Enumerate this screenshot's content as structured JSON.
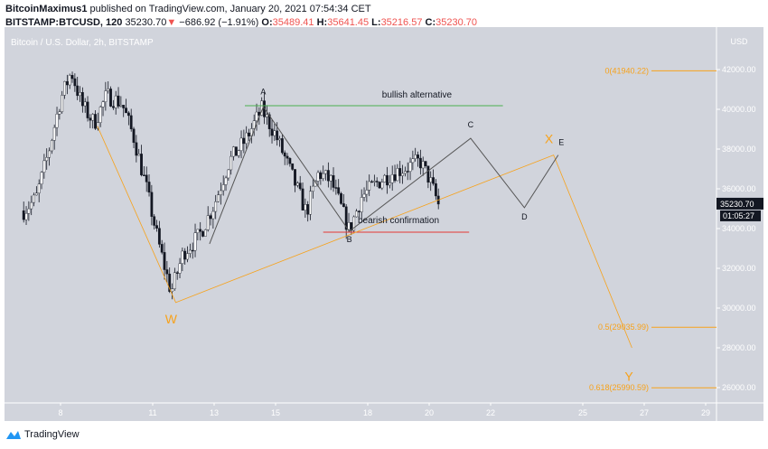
{
  "header": {
    "author": "BitcoinMaximus1",
    "published": "published on TradingView.com, January 20, 2021 07:54:34 CET",
    "symbol": "BITSTAMP:BTCUSD, 120",
    "last": "35230.70",
    "change": "−686.92 (−1.91%)",
    "o_label": "O:",
    "o": "35489.41",
    "h_label": "H:",
    "h": "35641.45",
    "l_label": "L:",
    "l": "35216.57",
    "c_label": "C:",
    "c": "35230.70"
  },
  "footer": {
    "brand": "TradingView"
  },
  "chart_data": {
    "type": "candlestick",
    "title": "Bitcoin / U.S. Dollar, 2h, BITSTAMP",
    "currency_label": "USD",
    "interval": "2h",
    "y_ticks": [
      "42000.00",
      "40000.00",
      "38000.00",
      "36000.00",
      "34000.00",
      "32000.00",
      "30000.00",
      "28000.00",
      "26000.00"
    ],
    "x_ticks": [
      "8",
      "11",
      "13",
      "15",
      "18",
      "20",
      "22",
      "25",
      "27",
      "29"
    ],
    "ylim": [
      24700,
      44300
    ],
    "last_price": "35230.70",
    "countdown": "01:05:27",
    "price_path_approx": [
      [
        6.8,
        34900
      ],
      [
        7.2,
        35500
      ],
      [
        7.6,
        37800
      ],
      [
        8.0,
        40500
      ],
      [
        8.35,
        41900
      ],
      [
        8.7,
        40200
      ],
      [
        9.1,
        39300
      ],
      [
        9.5,
        40700
      ],
      [
        10.0,
        40300
      ],
      [
        10.4,
        38500
      ],
      [
        10.8,
        36000
      ],
      [
        11.2,
        33200
      ],
      [
        11.6,
        30800
      ],
      [
        12.0,
        32800
      ],
      [
        12.5,
        33600
      ],
      [
        13.0,
        35200
      ],
      [
        13.5,
        37400
      ],
      [
        14.0,
        38400
      ],
      [
        14.55,
        40000
      ],
      [
        15.0,
        38700
      ],
      [
        15.5,
        36800
      ],
      [
        16.0,
        34800
      ],
      [
        16.4,
        36800
      ],
      [
        16.8,
        36400
      ],
      [
        17.1,
        35200
      ],
      [
        17.4,
        33900
      ],
      [
        17.8,
        35600
      ],
      [
        18.3,
        36300
      ],
      [
        18.8,
        36800
      ],
      [
        19.3,
        37100
      ],
      [
        19.7,
        37400
      ],
      [
        20.0,
        36500
      ],
      [
        20.3,
        35230
      ]
    ],
    "colors": {
      "background": "#d1d4dc",
      "up": "#ffffff",
      "down": "#131722",
      "fib": "#f7a21b",
      "bullish": "#4caf50",
      "bearish": "#e53935",
      "wave": "#555"
    },
    "fib_levels": [
      {
        "label": "0(41940.22)",
        "price": 41940.22
      },
      {
        "label": "0.5(29035.99)",
        "price": 29035.99
      },
      {
        "label": "0.618(25990.59)",
        "price": 25990.59
      }
    ],
    "lines": [
      {
        "name": "bullish alternative",
        "color": "#4caf50",
        "points": [
          [
            14.0,
            40180
          ],
          [
            22.4,
            40180
          ]
        ]
      },
      {
        "name": "bearish confirmation",
        "color": "#e53935",
        "points": [
          [
            16.55,
            33820
          ],
          [
            21.3,
            33820
          ]
        ]
      },
      {
        "name": "wxy",
        "color": "#f7a21b",
        "points": [
          [
            9.2,
            39150
          ],
          [
            11.75,
            30280
          ],
          [
            24.05,
            37700
          ],
          [
            26.6,
            28000
          ]
        ]
      },
      {
        "name": "abcde",
        "color": "#555",
        "points": [
          [
            12.85,
            33230
          ],
          [
            14.6,
            40130
          ],
          [
            17.4,
            33860
          ],
          [
            21.35,
            38540
          ],
          [
            23.1,
            35050
          ],
          [
            24.2,
            37700
          ]
        ]
      }
    ],
    "annotations": [
      {
        "text": "bullish alternative",
        "at": [
          19.6,
          40580
        ],
        "color": "#131722",
        "size": 10
      },
      {
        "text": "bearish confirmation",
        "at": [
          19.0,
          34270
        ],
        "color": "#131722",
        "size": 10
      },
      {
        "text": "A",
        "at": [
          14.6,
          40740
        ],
        "color": "#131722",
        "size": 9
      },
      {
        "text": "B",
        "at": [
          17.4,
          33320
        ],
        "color": "#131722",
        "size": 9
      },
      {
        "text": "C",
        "at": [
          21.35,
          39080
        ],
        "color": "#131722",
        "size": 9
      },
      {
        "text": "D",
        "at": [
          23.1,
          34450
        ],
        "color": "#131722",
        "size": 9
      },
      {
        "text": "E",
        "at": [
          24.3,
          38200
        ],
        "color": "#131722",
        "size": 9
      },
      {
        "text": "X",
        "at": [
          23.9,
          38300
        ],
        "color": "#f7a21b",
        "size": 14
      },
      {
        "text": "W",
        "at": [
          11.6,
          29230
        ],
        "color": "#f7a21b",
        "size": 14
      },
      {
        "text": "Y",
        "at": [
          26.5,
          26350
        ],
        "color": "#f7a21b",
        "size": 14
      }
    ]
  }
}
